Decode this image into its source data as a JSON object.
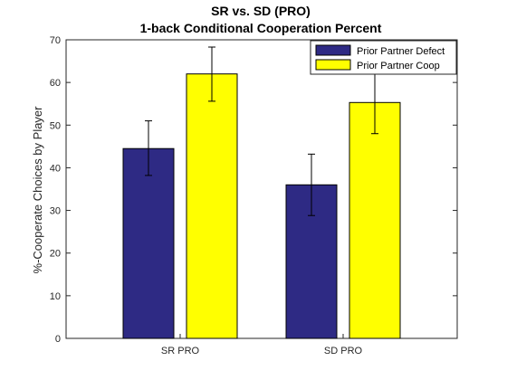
{
  "chart_data": {
    "type": "bar",
    "title": "SR vs. SD (PRO)",
    "subtitle": "1-back Conditional Cooperation Percent",
    "xlabel": "",
    "ylabel": "%-Cooperate Choices by Player",
    "categories": [
      "SR PRO",
      "SD PRO"
    ],
    "ylim": [
      0,
      70
    ],
    "yticks": [
      0,
      10,
      20,
      30,
      40,
      50,
      60,
      70
    ],
    "grid": false,
    "legend_position": "top-right",
    "series": [
      {
        "name": "Prior Partner Defect",
        "color": "#2e2a84",
        "values": [
          44.5,
          36.0
        ],
        "error_low": [
          38.2,
          28.8
        ],
        "error_high": [
          51.0,
          43.2
        ]
      },
      {
        "name": "Prior Partner Coop",
        "color": "#ffff00",
        "values": [
          62.0,
          55.3
        ],
        "error_low": [
          55.6,
          48.0
        ],
        "error_high": [
          68.3,
          62.6
        ]
      }
    ]
  }
}
